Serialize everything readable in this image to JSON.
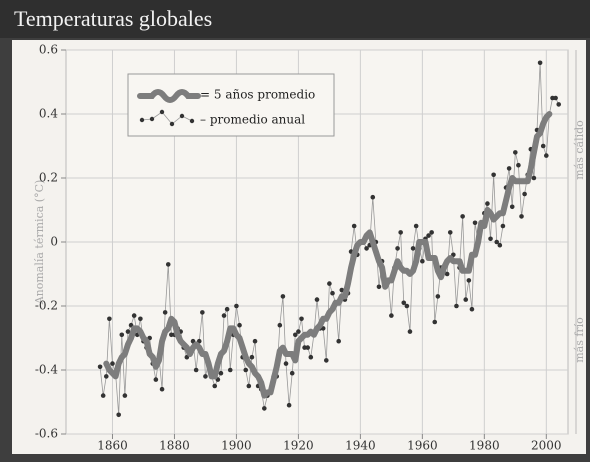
{
  "chart_data": {
    "type": "line",
    "title": "Temperaturas globales",
    "y_label": "Anomalía térmica (°C)",
    "side_labels": [
      "más cálido",
      "más frío"
    ],
    "xlim": [
      1845,
      2007
    ],
    "xticks": [
      1860,
      1880,
      1900,
      1920,
      1940,
      1960,
      1980,
      2000
    ],
    "ylim": [
      -0.6,
      0.6
    ],
    "yticks": [
      0.6,
      0.4,
      0.2,
      0,
      -0.2,
      -0.4,
      -0.6
    ],
    "grid": true,
    "legend": "upper left",
    "x": [
      1856,
      1857,
      1858,
      1859,
      1860,
      1861,
      1862,
      1863,
      1864,
      1865,
      1866,
      1867,
      1868,
      1869,
      1870,
      1871,
      1872,
      1873,
      1874,
      1875,
      1876,
      1877,
      1878,
      1879,
      1880,
      1881,
      1882,
      1883,
      1884,
      1885,
      1886,
      1887,
      1888,
      1889,
      1890,
      1891,
      1892,
      1893,
      1894,
      1895,
      1896,
      1897,
      1898,
      1899,
      1900,
      1901,
      1902,
      1903,
      1904,
      1905,
      1906,
      1907,
      1908,
      1909,
      1910,
      1911,
      1912,
      1913,
      1914,
      1915,
      1916,
      1917,
      1918,
      1919,
      1920,
      1921,
      1922,
      1923,
      1924,
      1925,
      1926,
      1927,
      1928,
      1929,
      1930,
      1931,
      1932,
      1933,
      1934,
      1935,
      1936,
      1937,
      1938,
      1939,
      1940,
      1941,
      1942,
      1943,
      1944,
      1945,
      1946,
      1947,
      1948,
      1949,
      1950,
      1951,
      1952,
      1953,
      1954,
      1955,
      1956,
      1957,
      1958,
      1959,
      1960,
      1961,
      1962,
      1963,
      1964,
      1965,
      1966,
      1967,
      1968,
      1969,
      1970,
      1971,
      1972,
      1973,
      1974,
      1975,
      1976,
      1977,
      1978,
      1979,
      1980,
      1981,
      1982,
      1983,
      1984,
      1985,
      1986,
      1987,
      1988,
      1989,
      1990,
      1991,
      1992,
      1993,
      1994,
      1995,
      1996,
      1997,
      1998,
      1999,
      2000,
      2001,
      2002,
      2003,
      2004
    ],
    "series": [
      {
        "name": "= 5 años promedio",
        "color": "#7d7d7d",
        "style": "smooth",
        "values": [
          null,
          null,
          -0.38,
          -0.4,
          -0.41,
          -0.42,
          -0.38,
          -0.36,
          -0.35,
          -0.32,
          -0.3,
          -0.27,
          -0.27,
          -0.28,
          -0.3,
          -0.31,
          -0.35,
          -0.36,
          -0.39,
          -0.37,
          -0.31,
          -0.28,
          -0.27,
          -0.24,
          -0.25,
          -0.29,
          -0.31,
          -0.32,
          -0.33,
          -0.35,
          -0.33,
          -0.32,
          -0.33,
          -0.35,
          -0.35,
          -0.38,
          -0.42,
          -0.42,
          -0.38,
          -0.35,
          -0.34,
          -0.31,
          -0.27,
          -0.27,
          -0.29,
          -0.3,
          -0.33,
          -0.36,
          -0.38,
          -0.39,
          -0.41,
          -0.42,
          -0.44,
          -0.48,
          -0.47,
          -0.47,
          -0.43,
          -0.39,
          -0.34,
          -0.33,
          -0.35,
          -0.35,
          -0.35,
          -0.37,
          -0.31,
          -0.3,
          -0.29,
          -0.29,
          -0.28,
          -0.29,
          -0.27,
          -0.26,
          -0.24,
          -0.24,
          -0.22,
          -0.21,
          -0.19,
          -0.19,
          -0.17,
          -0.17,
          -0.13,
          -0.08,
          -0.04,
          -0.01,
          0.0,
          0.0,
          0.02,
          0.03,
          0.0,
          -0.03,
          -0.06,
          -0.08,
          -0.14,
          -0.12,
          -0.12,
          -0.09,
          -0.06,
          -0.08,
          -0.09,
          -0.09,
          -0.1,
          -0.09,
          -0.06,
          0.0,
          0.0,
          0.0,
          -0.05,
          -0.05,
          -0.05,
          -0.09,
          -0.11,
          -0.08,
          -0.06,
          -0.05,
          -0.06,
          -0.06,
          -0.06,
          -0.09,
          -0.09,
          -0.09,
          -0.04,
          -0.04,
          0.0,
          0.06,
          0.05,
          0.1,
          0.09,
          0.07,
          0.08,
          0.09,
          0.09,
          0.13,
          0.17,
          0.2,
          0.19,
          0.19,
          0.19,
          0.19,
          0.19,
          0.23,
          0.28,
          0.33,
          0.34,
          0.37,
          0.39,
          0.4,
          null,
          null,
          null
        ]
      },
      {
        "name": "– promedio anual",
        "color": "#333333",
        "style": "dots",
        "values": [
          -0.39,
          -0.48,
          -0.42,
          -0.24,
          -0.38,
          -0.41,
          -0.54,
          -0.29,
          -0.48,
          -0.28,
          -0.26,
          -0.23,
          -0.29,
          -0.24,
          -0.31,
          -0.33,
          -0.3,
          -0.38,
          -0.43,
          -0.36,
          -0.46,
          -0.22,
          -0.07,
          -0.29,
          -0.29,
          -0.27,
          -0.28,
          -0.33,
          -0.36,
          -0.35,
          -0.31,
          -0.4,
          -0.31,
          -0.22,
          -0.42,
          -0.38,
          -0.42,
          -0.45,
          -0.43,
          -0.41,
          -0.23,
          -0.21,
          -0.4,
          -0.29,
          -0.2,
          -0.26,
          -0.36,
          -0.4,
          -0.45,
          -0.36,
          -0.31,
          -0.45,
          -0.46,
          -0.52,
          -0.48,
          -0.47,
          -0.42,
          -0.42,
          -0.26,
          -0.17,
          -0.38,
          -0.51,
          -0.41,
          -0.29,
          -0.28,
          -0.24,
          -0.33,
          -0.33,
          -0.36,
          -0.29,
          -0.18,
          -0.27,
          -0.27,
          -0.37,
          -0.13,
          -0.16,
          -0.19,
          -0.31,
          -0.15,
          -0.18,
          -0.16,
          -0.03,
          0.05,
          -0.04,
          0.0,
          0.0,
          -0.02,
          -0.01,
          0.14,
          0.0,
          -0.14,
          -0.06,
          -0.13,
          -0.12,
          -0.23,
          -0.08,
          -0.02,
          0.03,
          -0.19,
          -0.2,
          -0.28,
          -0.02,
          0.05,
          -0.02,
          -0.06,
          0.01,
          0.02,
          0.03,
          -0.25,
          -0.17,
          -0.08,
          -0.08,
          -0.1,
          0.03,
          -0.04,
          -0.2,
          -0.08,
          0.08,
          -0.18,
          -0.12,
          -0.21,
          0.06,
          0.0,
          0.05,
          0.09,
          0.12,
          0.01,
          0.21,
          0.0,
          -0.01,
          0.05,
          0.17,
          0.23,
          0.11,
          0.28,
          0.24,
          0.08,
          0.15,
          0.21,
          0.29,
          0.2,
          0.35,
          0.56,
          0.3,
          0.27,
          0.4,
          0.45,
          0.45,
          0.43
        ]
      }
    ]
  }
}
